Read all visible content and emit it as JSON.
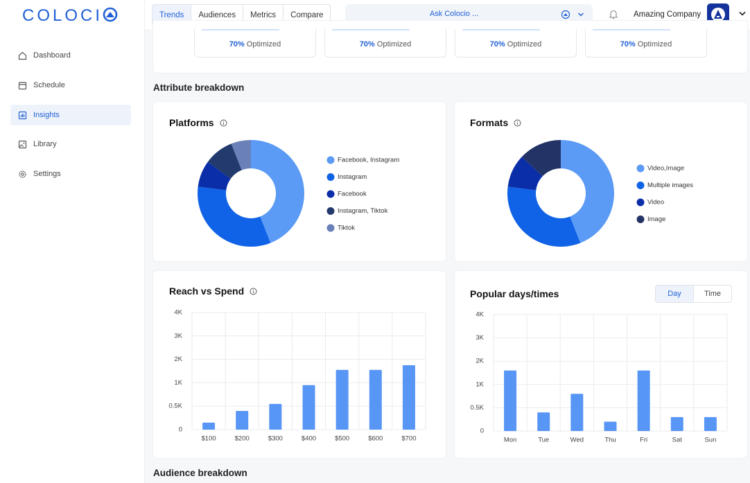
{
  "sidebar": {
    "logo": "COLOCI",
    "nav": [
      "Dashboard",
      "Schedule",
      "Insights",
      "Library",
      "Settings"
    ]
  },
  "header": {
    "tabs": [
      "Trends",
      "Audiences",
      "Metrics",
      "Compare"
    ],
    "search": "Ask Colocio ...",
    "company": "Amazing Company"
  },
  "summary": {
    "cards": [
      {
        "value": "70%",
        "label": "Optimized"
      },
      {
        "value": "70%",
        "label": "Optimized"
      },
      {
        "value": "70%",
        "label": "Optimized"
      },
      {
        "value": "70%",
        "label": "Optimized"
      }
    ]
  },
  "sections": [
    "Attribute breakdown",
    "Audience breakdown"
  ],
  "toggle": [
    "Day",
    "Time"
  ],
  "chart_data": [
    {
      "type": "donut",
      "title": "Platforms",
      "categories": [
        "Facebook, Instagram",
        "Instagram",
        "Facebook",
        "Instagram, Tiktok",
        "Tiktok"
      ],
      "values": [
        44,
        33,
        8,
        9,
        6
      ],
      "colors": [
        "#5b9af5",
        "#1062e6",
        "#0a2ea8",
        "#233a6e",
        "#6a80b8"
      ]
    },
    {
      "type": "donut",
      "title": "Formats",
      "categories": [
        "Video,Image",
        "Multiple images",
        "Video",
        "Image"
      ],
      "values": [
        44,
        33,
        10,
        13
      ],
      "colors": [
        "#5b9af5",
        "#1062e6",
        "#0a2ea8",
        "#233366"
      ]
    },
    {
      "type": "bar",
      "title": "Reach vs Spend",
      "categories": [
        "$100",
        "$200",
        "$300",
        "$400",
        "$500",
        "$600",
        "$700"
      ],
      "values": [
        150,
        400,
        550,
        950,
        1550,
        1550,
        1750
      ],
      "color": "#5896f5",
      "ylim": [
        0,
        4000
      ],
      "yticks": [
        0,
        {
          "value": 500,
          "label": "0.5K"
        },
        {
          "value": 1000,
          "label": "1K"
        },
        {
          "value": 2000,
          "label": "2K"
        },
        {
          "value": 3000,
          "label": "3K"
        },
        {
          "value": 4000,
          "label": "4K"
        }
      ],
      "grid": true
    },
    {
      "type": "bar",
      "title": "Popular days/times",
      "categories": [
        "Mon",
        "Tue",
        "Wed",
        "Thu",
        "Fri",
        "Sat",
        "Sun"
      ],
      "values": [
        1600,
        400,
        800,
        200,
        1600,
        300,
        300
      ],
      "color": "#5896f5",
      "ylim": [
        0,
        4000
      ],
      "yticks": [
        0,
        {
          "value": 500,
          "label": "0.5K"
        },
        {
          "value": 1000,
          "label": "1K"
        },
        {
          "value": 2000,
          "label": "2K"
        },
        {
          "value": 3000,
          "label": "3K"
        },
        {
          "value": 4000,
          "label": "4K"
        }
      ],
      "grid": true
    }
  ]
}
